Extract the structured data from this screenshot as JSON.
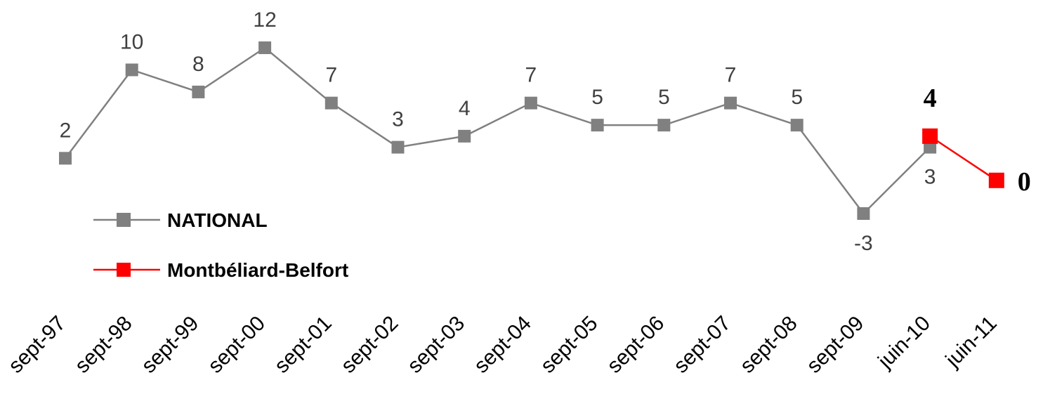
{
  "chart_data": {
    "type": "line",
    "categories": [
      "sept-97",
      "sept-98",
      "sept-99",
      "sept-00",
      "sept-01",
      "sept-02",
      "sept-03",
      "sept-04",
      "sept-05",
      "sept-06",
      "sept-07",
      "sept-08",
      "sept-09",
      "juin-10",
      "juin-11"
    ],
    "series": [
      {
        "name": "NATIONAL",
        "color": "#808080",
        "values": [
          2,
          10,
          8,
          12,
          7,
          3,
          4,
          7,
          5,
          5,
          7,
          5,
          -3,
          3,
          null
        ],
        "labels": [
          "2",
          "10",
          "8",
          "12",
          "7",
          "3",
          "4",
          "7",
          "5",
          "5",
          "7",
          "5",
          "-3",
          "3",
          ""
        ]
      },
      {
        "name": "Montbéliard-Belfort",
        "color": "#ff0000",
        "values": [
          null,
          null,
          null,
          null,
          null,
          null,
          null,
          null,
          null,
          null,
          null,
          null,
          null,
          4,
          0
        ],
        "labels": [
          "",
          "",
          "",
          "",
          "",
          "",
          "",
          "",
          "",
          "",
          "",
          "",
          "",
          "4",
          "0"
        ]
      }
    ],
    "legend_position": "left",
    "grid": false
  }
}
